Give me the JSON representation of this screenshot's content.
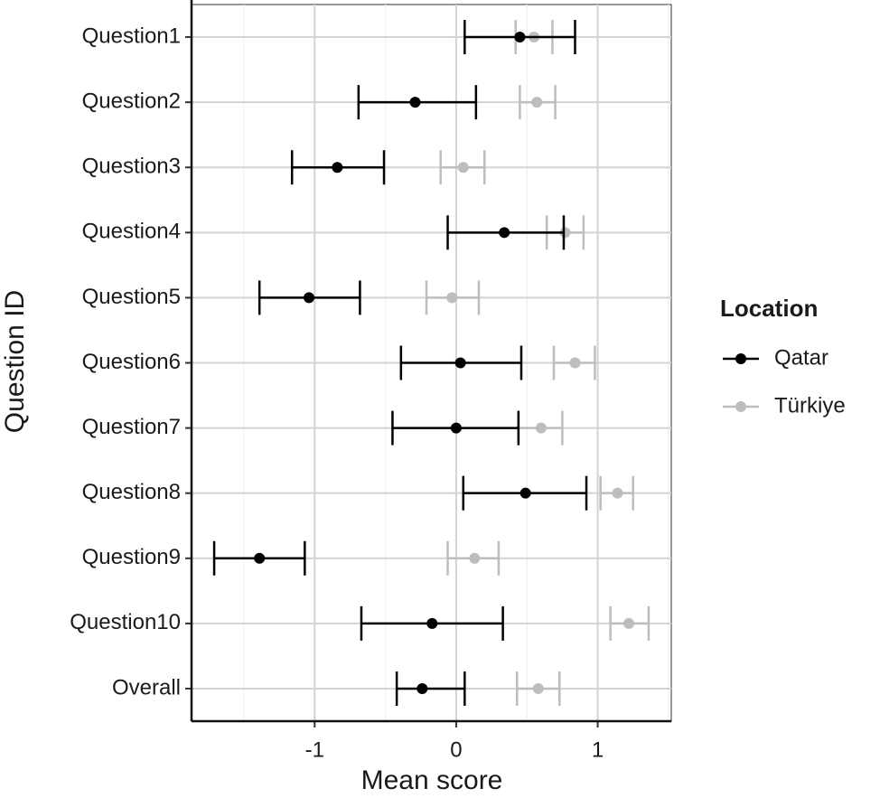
{
  "chart_data": {
    "type": "dot_errorbar",
    "x_label": "Mean score",
    "y_label": "Question ID",
    "categories": [
      "Question1",
      "Question2",
      "Question3",
      "Question4",
      "Question5",
      "Question6",
      "Question7",
      "Question8",
      "Question9",
      "Question10",
      "Overall"
    ],
    "series": [
      {
        "name": "Qatar",
        "color": "#000000",
        "values": [
          0.45,
          -0.29,
          -0.84,
          0.34,
          -1.04,
          0.03,
          0.0,
          0.49,
          -1.39,
          -0.17,
          -0.24
        ],
        "lower": [
          0.06,
          -0.69,
          -1.16,
          -0.06,
          -1.39,
          -0.39,
          -0.45,
          0.05,
          -1.71,
          -0.67,
          -0.42
        ],
        "upper": [
          0.84,
          0.14,
          -0.51,
          0.76,
          -0.68,
          0.46,
          0.44,
          0.92,
          -1.07,
          0.33,
          0.06
        ]
      },
      {
        "name": "Türkiye",
        "color": "#bdbdbd",
        "values": [
          0.55,
          0.57,
          0.05,
          0.77,
          -0.03,
          0.84,
          0.6,
          1.14,
          0.13,
          1.22,
          0.58
        ],
        "lower": [
          0.42,
          0.45,
          -0.11,
          0.64,
          -0.21,
          0.69,
          0.44,
          1.02,
          -0.06,
          1.09,
          0.43
        ],
        "upper": [
          0.68,
          0.7,
          0.2,
          0.9,
          0.16,
          0.98,
          0.75,
          1.25,
          0.3,
          1.36,
          0.73
        ]
      }
    ],
    "xlim": [
      -1.87,
      1.52
    ],
    "xticks": [
      -1,
      0,
      1
    ],
    "grid": true,
    "legend_title": "Location",
    "legend_position": "right"
  }
}
